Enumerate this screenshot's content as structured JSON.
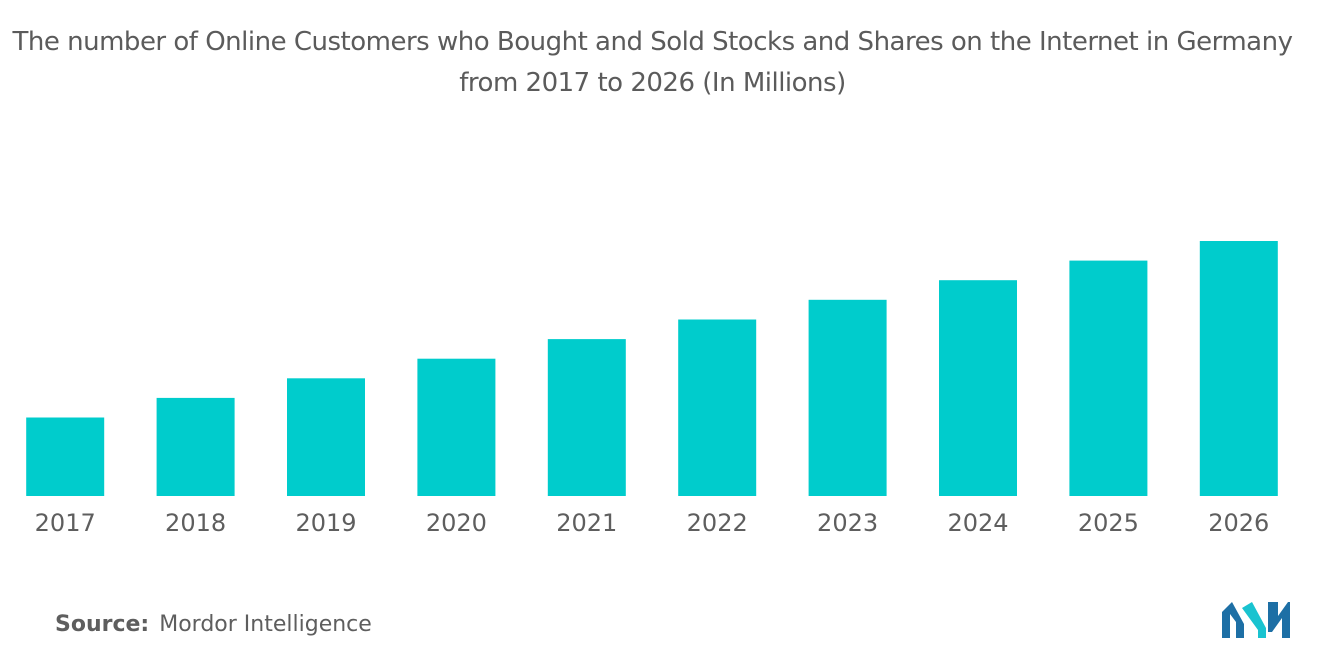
{
  "chart_data": {
    "type": "bar",
    "title": "The number of Online Customers who Bought and Sold Stocks and Shares on the Internet in Germany from 2017 to 2026 (In Millions)",
    "categories": [
      "2017",
      "2018",
      "2019",
      "2020",
      "2021",
      "2022",
      "2023",
      "2024",
      "2025",
      "2026"
    ],
    "values": [
      4.0,
      5.0,
      6.0,
      7.0,
      8.0,
      9.0,
      10.0,
      11.0,
      12.0,
      13.0
    ],
    "xlabel": "",
    "ylabel": "",
    "ylim": [
      0,
      13
    ],
    "grid": false,
    "legend": "none",
    "bar_color": "#00cccc"
  },
  "source": {
    "label": "Source:",
    "text": "Mordor Intelligence"
  },
  "logo": {
    "icon": "mordor-intelligence-logo-icon",
    "colors": [
      "#1d6fa5",
      "#19c3d0"
    ]
  }
}
